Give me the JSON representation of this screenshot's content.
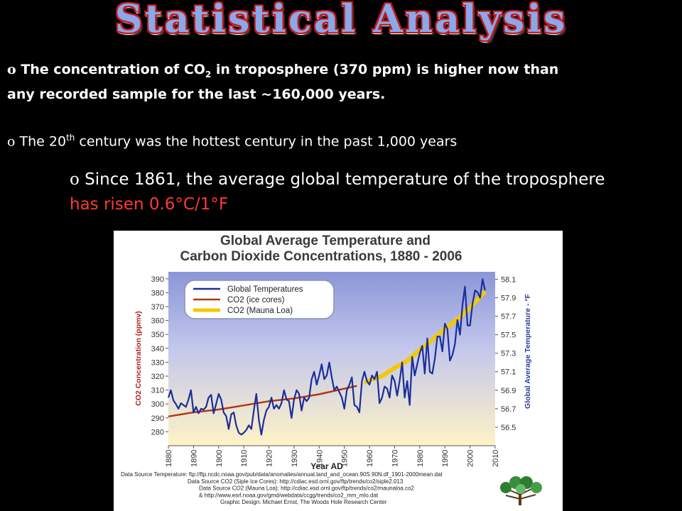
{
  "slide": {
    "title": "Statistical Analysis",
    "bullet_marker": "o",
    "b1_part1": "The concentration of CO",
    "b1_sub": "2",
    "b1_part2": " in troposphere (370 ppm) is higher now than any recorded sample for the last ~160,000 years.",
    "b2_part1": "The 20",
    "b2_sup": "th",
    "b2_part2": " century was the hottest century in the past 1,000 years",
    "b3_part1": "Since 1861, the average global temperature  of the troposphere ",
    "b3_highlight": "has risen 0.6°C/1°F"
  },
  "chart_data": {
    "type": "line",
    "title": "Global Average Temperature and Carbon Dioxide Concentrations, 1880 - 2006",
    "xlabel": "Year AD",
    "ylabel": "CO2 Concentration (ppmv)",
    "y2label": "Global Average Temperature - °F",
    "xlim": [
      1880,
      2010
    ],
    "ylim": [
      270,
      395
    ],
    "y2lim": [
      56.3,
      58.18
    ],
    "x_ticks": [
      1880,
      1890,
      1900,
      1910,
      1920,
      1930,
      1940,
      1950,
      1960,
      1970,
      1980,
      1990,
      2000,
      2010
    ],
    "y_ticks": [
      280,
      290,
      300,
      310,
      320,
      330,
      340,
      350,
      360,
      370,
      380,
      390
    ],
    "y2_ticks": [
      56.5,
      56.7,
      56.9,
      57.1,
      57.3,
      57.5,
      57.7,
      57.9,
      58.1
    ],
    "legend_position": "top-left",
    "colors": {
      "temperature": "#1a2e9c",
      "ice": "#b03a12",
      "mauna": "#f5c800"
    },
    "series": [
      {
        "name": "Global Temperatures",
        "axis": "right",
        "x": [
          1880,
          1881,
          1882,
          1883,
          1884,
          1885,
          1886,
          1887,
          1888,
          1889,
          1890,
          1891,
          1892,
          1893,
          1894,
          1895,
          1896,
          1897,
          1898,
          1899,
          1900,
          1901,
          1902,
          1903,
          1904,
          1905,
          1906,
          1907,
          1908,
          1909,
          1910,
          1911,
          1912,
          1913,
          1914,
          1915,
          1916,
          1917,
          1918,
          1919,
          1920,
          1921,
          1922,
          1923,
          1924,
          1925,
          1926,
          1927,
          1928,
          1929,
          1930,
          1931,
          1932,
          1933,
          1934,
          1935,
          1936,
          1937,
          1938,
          1939,
          1940,
          1941,
          1942,
          1943,
          1944,
          1945,
          1946,
          1947,
          1948,
          1949,
          1950,
          1951,
          1952,
          1953,
          1954,
          1955,
          1956,
          1957,
          1958,
          1959,
          1960,
          1961,
          1962,
          1963,
          1964,
          1965,
          1966,
          1967,
          1968,
          1969,
          1970,
          1971,
          1972,
          1973,
          1974,
          1975,
          1976,
          1977,
          1978,
          1979,
          1980,
          1981,
          1982,
          1983,
          1984,
          1985,
          1986,
          1987,
          1988,
          1989,
          1990,
          1991,
          1992,
          1993,
          1994,
          1995,
          1996,
          1997,
          1998,
          1999,
          2000,
          2001,
          2002,
          2003,
          2004,
          2005,
          2006
        ],
        "values": [
          56.82,
          56.9,
          56.79,
          56.75,
          56.7,
          56.76,
          56.74,
          56.72,
          56.8,
          56.9,
          56.66,
          56.72,
          56.65,
          56.7,
          56.69,
          56.72,
          56.82,
          56.85,
          56.65,
          56.75,
          56.86,
          56.8,
          56.66,
          56.62,
          56.48,
          56.64,
          56.66,
          56.52,
          56.44,
          56.42,
          56.44,
          56.47,
          56.52,
          56.48,
          56.68,
          56.86,
          56.58,
          56.42,
          56.58,
          56.68,
          56.72,
          56.82,
          56.7,
          56.74,
          56.7,
          56.76,
          56.9,
          56.8,
          56.78,
          56.6,
          56.8,
          56.9,
          56.86,
          56.68,
          56.82,
          56.78,
          56.82,
          57.02,
          57.1,
          56.96,
          57.06,
          57.18,
          57.02,
          57.06,
          57.2,
          57.04,
          56.9,
          56.94,
          56.88,
          56.82,
          56.7,
          56.9,
          56.96,
          57.04,
          56.74,
          56.72,
          56.66,
          57.0,
          57.1,
          57.0,
          56.96,
          57.06,
          57.02,
          57.1,
          56.76,
          56.82,
          56.94,
          56.92,
          56.82,
          57.06,
          57.0,
          56.84,
          57.0,
          57.2,
          56.82,
          57.0,
          56.74,
          57.26,
          57.06,
          57.18,
          57.3,
          57.38,
          57.08,
          57.46,
          57.1,
          57.08,
          57.24,
          57.48,
          57.48,
          57.32,
          57.62,
          57.56,
          57.22,
          57.28,
          57.4,
          57.66,
          57.5,
          57.82,
          58.02,
          57.6,
          57.6,
          57.84,
          57.98,
          57.96,
          57.9,
          58.1,
          57.98
        ]
      },
      {
        "name": "CO2 (ice cores)",
        "axis": "left",
        "x": [
          1880,
          1890,
          1900,
          1910,
          1920,
          1930,
          1940,
          1950,
          1955
        ],
        "values": [
          291,
          294,
          296,
          299,
          302,
          304,
          307,
          311,
          313
        ]
      },
      {
        "name": "CO2 (Mauna Loa)",
        "axis": "left",
        "x": [
          1958,
          1960,
          1965,
          1970,
          1975,
          1980,
          1985,
          1990,
          1995,
          2000,
          2006
        ],
        "values": [
          315,
          317,
          320,
          326,
          331,
          339,
          346,
          354,
          361,
          369,
          381
        ]
      }
    ],
    "footer_lines": [
      "Data Source Temperature: ftp://ftp.ncdc.noaa.gov/pub/data/anomalies/annual.land_and_ocean.90S.90N.df_1901-2000mean.dat",
      "Data Source CO2 (Siple Ice Cores): http://cdiac.esd.ornl.gov/ftp/trends/co2/siple2.013",
      "Data Source CO2 (Mauna Loa): http://cdiac.esd.ornl.gov/ftp/trends/co2/maunaloa.co2",
      "& http://www.esrl.noaa.gov/gmd/webdata/ccgg/trends/co2_mm_mlo.dat",
      "Graphic Design: Michael Ernst, The Woods Hole Research Center"
    ]
  }
}
